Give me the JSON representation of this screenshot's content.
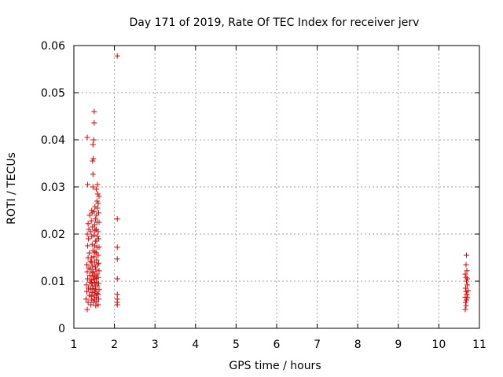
{
  "chart_data": {
    "type": "scatter",
    "title": "Day 171 of 2019, Rate Of TEC Index for receiver jerv",
    "xlabel": "GPS time / hours",
    "ylabel": "ROTI / TECUs",
    "xlim": [
      1,
      11
    ],
    "ylim": [
      0,
      0.06
    ],
    "x_ticks": [
      "1",
      "2",
      "3",
      "4",
      "5",
      "6",
      "7",
      "8",
      "9",
      "10",
      "11"
    ],
    "y_ticks": [
      "0",
      "0.01",
      "0.02",
      "0.03",
      "0.04",
      "0.05",
      "0.06"
    ],
    "grid": true,
    "marker": "+",
    "series": [
      {
        "name": "ROTI",
        "color": "#e00000",
        "points": [
          [
            1.33,
            0.004
          ],
          [
            1.35,
            0.0055
          ],
          [
            1.3,
            0.0062
          ],
          [
            1.38,
            0.007
          ],
          [
            1.32,
            0.0078
          ],
          [
            1.36,
            0.0085
          ],
          [
            1.31,
            0.0092
          ],
          [
            1.4,
            0.0098
          ],
          [
            1.34,
            0.0105
          ],
          [
            1.39,
            0.0112
          ],
          [
            1.33,
            0.012
          ],
          [
            1.37,
            0.0128
          ],
          [
            1.32,
            0.0135
          ],
          [
            1.41,
            0.0142
          ],
          [
            1.35,
            0.015
          ],
          [
            1.38,
            0.016
          ],
          [
            1.34,
            0.0175
          ],
          [
            1.36,
            0.019
          ],
          [
            1.33,
            0.02
          ],
          [
            1.37,
            0.021
          ],
          [
            1.35,
            0.0222
          ],
          [
            1.39,
            0.024
          ],
          [
            1.34,
            0.0305
          ],
          [
            1.33,
            0.0405
          ],
          [
            1.42,
            0.005
          ],
          [
            1.44,
            0.006
          ],
          [
            1.43,
            0.0068
          ],
          [
            1.45,
            0.0076
          ],
          [
            1.42,
            0.0083
          ],
          [
            1.46,
            0.009
          ],
          [
            1.44,
            0.0096
          ],
          [
            1.43,
            0.0102
          ],
          [
            1.47,
            0.011
          ],
          [
            1.45,
            0.0118
          ],
          [
            1.42,
            0.0125
          ],
          [
            1.46,
            0.0132
          ],
          [
            1.44,
            0.014
          ],
          [
            1.43,
            0.015
          ],
          [
            1.47,
            0.0165
          ],
          [
            1.45,
            0.0178
          ],
          [
            1.44,
            0.0195
          ],
          [
            1.42,
            0.0205
          ],
          [
            1.46,
            0.0215
          ],
          [
            1.43,
            0.0228
          ],
          [
            1.45,
            0.0245
          ],
          [
            1.44,
            0.025
          ],
          [
            1.47,
            0.03
          ],
          [
            1.46,
            0.0355
          ],
          [
            1.48,
            0.036
          ],
          [
            1.47,
            0.039
          ],
          [
            1.49,
            0.04
          ],
          [
            1.47,
            0.0327
          ],
          [
            1.5,
            0.046
          ],
          [
            1.5,
            0.0436
          ],
          [
            1.49,
            0.0055
          ],
          [
            1.51,
            0.0062
          ],
          [
            1.5,
            0.007
          ],
          [
            1.52,
            0.0077
          ],
          [
            1.49,
            0.0084
          ],
          [
            1.53,
            0.009
          ],
          [
            1.51,
            0.0097
          ],
          [
            1.5,
            0.0104
          ],
          [
            1.52,
            0.0112
          ],
          [
            1.49,
            0.012
          ],
          [
            1.53,
            0.013
          ],
          [
            1.51,
            0.014
          ],
          [
            1.5,
            0.0152
          ],
          [
            1.52,
            0.0162
          ],
          [
            1.51,
            0.0175
          ],
          [
            1.53,
            0.0185
          ],
          [
            1.5,
            0.0198
          ],
          [
            1.52,
            0.0208
          ],
          [
            1.51,
            0.022
          ],
          [
            1.53,
            0.0232
          ],
          [
            1.5,
            0.0248
          ],
          [
            1.52,
            0.0258
          ],
          [
            1.54,
            0.0048
          ],
          [
            1.56,
            0.0058
          ],
          [
            1.55,
            0.0066
          ],
          [
            1.57,
            0.0074
          ],
          [
            1.54,
            0.0082
          ],
          [
            1.58,
            0.009
          ],
          [
            1.56,
            0.0098
          ],
          [
            1.55,
            0.0106
          ],
          [
            1.57,
            0.0115
          ],
          [
            1.54,
            0.0125
          ],
          [
            1.58,
            0.0135
          ],
          [
            1.56,
            0.0145
          ],
          [
            1.55,
            0.016
          ],
          [
            1.57,
            0.0172
          ],
          [
            1.56,
            0.0185
          ],
          [
            1.58,
            0.0195
          ],
          [
            1.55,
            0.021
          ],
          [
            1.57,
            0.0225
          ],
          [
            1.56,
            0.024
          ],
          [
            1.58,
            0.0255
          ],
          [
            1.57,
            0.027
          ],
          [
            1.55,
            0.0295
          ],
          [
            1.59,
            0.0285
          ],
          [
            1.58,
            0.0305
          ],
          [
            1.6,
            0.005
          ],
          [
            1.61,
            0.0062
          ],
          [
            1.6,
            0.0072
          ],
          [
            1.62,
            0.0082
          ],
          [
            1.61,
            0.0095
          ],
          [
            1.6,
            0.0108
          ],
          [
            1.62,
            0.0122
          ],
          [
            1.61,
            0.0138
          ],
          [
            1.6,
            0.0155
          ],
          [
            1.62,
            0.0172
          ],
          [
            1.61,
            0.019
          ],
          [
            1.6,
            0.0205
          ],
          [
            1.62,
            0.0225
          ],
          [
            1.61,
            0.0245
          ],
          [
            1.6,
            0.0265
          ],
          [
            1.62,
            0.028
          ],
          [
            2.07,
            0.0578
          ],
          [
            2.07,
            0.0232
          ],
          [
            2.07,
            0.0172
          ],
          [
            2.07,
            0.0147
          ],
          [
            2.07,
            0.0105
          ],
          [
            2.07,
            0.0072
          ],
          [
            2.07,
            0.0062
          ],
          [
            2.07,
            0.0055
          ],
          [
            2.07,
            0.005
          ],
          [
            10.65,
            0.004
          ],
          [
            10.67,
            0.0048
          ],
          [
            10.66,
            0.0055
          ],
          [
            10.68,
            0.006
          ],
          [
            10.65,
            0.0066
          ],
          [
            10.69,
            0.0072
          ],
          [
            10.67,
            0.0078
          ],
          [
            10.66,
            0.0085
          ],
          [
            10.7,
            0.0092
          ],
          [
            10.68,
            0.01
          ],
          [
            10.67,
            0.0108
          ],
          [
            10.65,
            0.0115
          ],
          [
            10.69,
            0.0122
          ],
          [
            10.67,
            0.0135
          ],
          [
            10.68,
            0.0155
          ],
          [
            10.71,
            0.0065
          ],
          [
            10.72,
            0.008
          ],
          [
            10.7,
            0.0105
          ]
        ]
      }
    ]
  }
}
